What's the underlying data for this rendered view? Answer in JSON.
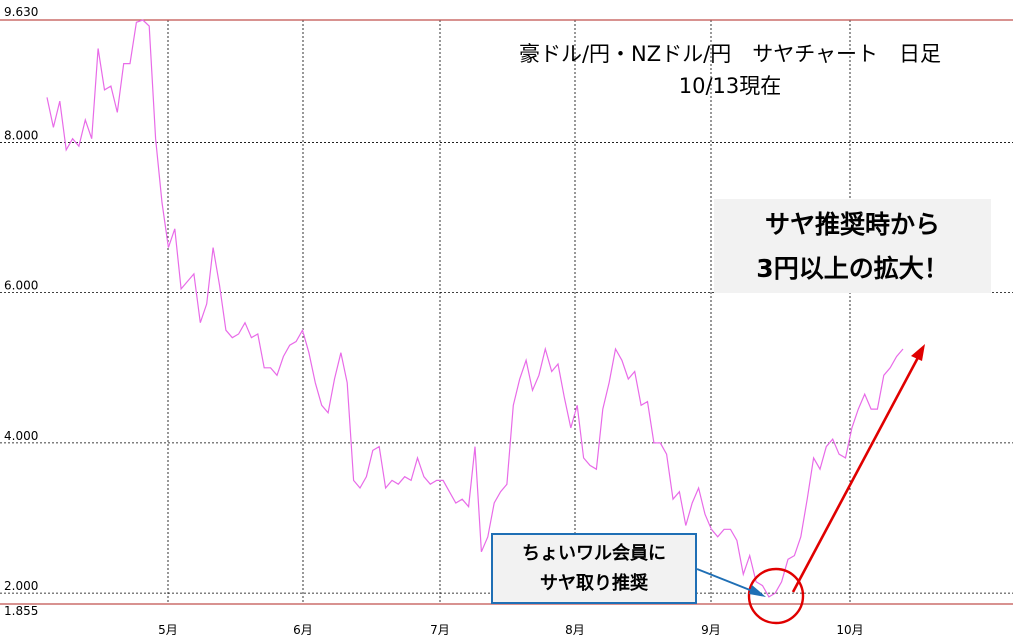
{
  "title_line1": "豪ドル/円・NZドル/円　サヤチャート　日足",
  "title_line2": "10/13現在",
  "callout_main_line1": "サヤ推奨時から",
  "callout_main_line2": "3円以上の拡大！",
  "callout_member_line1": "ちょいワル会員に",
  "callout_member_line2": "サヤ取り推奨",
  "colors": {
    "series": "#e86be8",
    "limit_line": "#c0504d",
    "arrow": "#e00000",
    "callout_border": "#1f6fb5",
    "callout_arrow": "#1f6fb5"
  },
  "chart_data": {
    "type": "line",
    "ylim": [
      1.855,
      9.63
    ],
    "y_ticks": [
      "9.630",
      "8.000",
      "6.000",
      "4.000",
      "2.000",
      "1.855"
    ],
    "x_ticks": [
      "5月",
      "6月",
      "7月",
      "8月",
      "9月",
      "10月"
    ],
    "grid": true,
    "series": [
      {
        "values": [
          8.6,
          8.2,
          8.55,
          7.9,
          8.05,
          7.95,
          8.3,
          8.05,
          9.25,
          8.7,
          8.75,
          8.4,
          9.05,
          9.05,
          9.6,
          9.63,
          9.55,
          8.05,
          7.2,
          6.6,
          6.85,
          6.05,
          6.15,
          6.25,
          5.6,
          5.85,
          6.6,
          6.1,
          5.5,
          5.4,
          5.45,
          5.6,
          5.4,
          5.45,
          5.0,
          5.0,
          4.9,
          5.15,
          5.3,
          5.35,
          5.5,
          5.2,
          4.8,
          4.5,
          4.4,
          4.85,
          5.2,
          4.8,
          3.5,
          3.4,
          3.55,
          3.9,
          3.95,
          3.4,
          3.5,
          3.45,
          3.55,
          3.5,
          3.8,
          3.55,
          3.45,
          3.5,
          3.5,
          3.35,
          3.2,
          3.25,
          3.15,
          3.95,
          2.55,
          2.75,
          3.2,
          3.35,
          3.45,
          4.5,
          4.85,
          5.1,
          4.7,
          4.9,
          5.25,
          4.95,
          5.05,
          4.6,
          4.2,
          4.5,
          3.8,
          3.7,
          3.65,
          4.45,
          4.8,
          5.25,
          5.1,
          4.85,
          4.95,
          4.5,
          4.55,
          4.0,
          4.0,
          3.85,
          3.25,
          3.35,
          2.9,
          3.2,
          3.4,
          3.05,
          2.85,
          2.75,
          2.85,
          2.85,
          2.7,
          2.25,
          2.5,
          2.15,
          2.1,
          1.95,
          2.0,
          2.15,
          2.45,
          2.5,
          2.75,
          3.25,
          3.8,
          3.65,
          3.95,
          4.05,
          3.85,
          3.8,
          4.2,
          4.45,
          4.65,
          4.45,
          4.45,
          4.9,
          5.0,
          5.15,
          5.25
        ]
      }
    ],
    "annotations": [
      "サヤ推奨時から 3円以上の拡大！",
      "ちょいワル会員に サヤ取り推奨"
    ]
  }
}
